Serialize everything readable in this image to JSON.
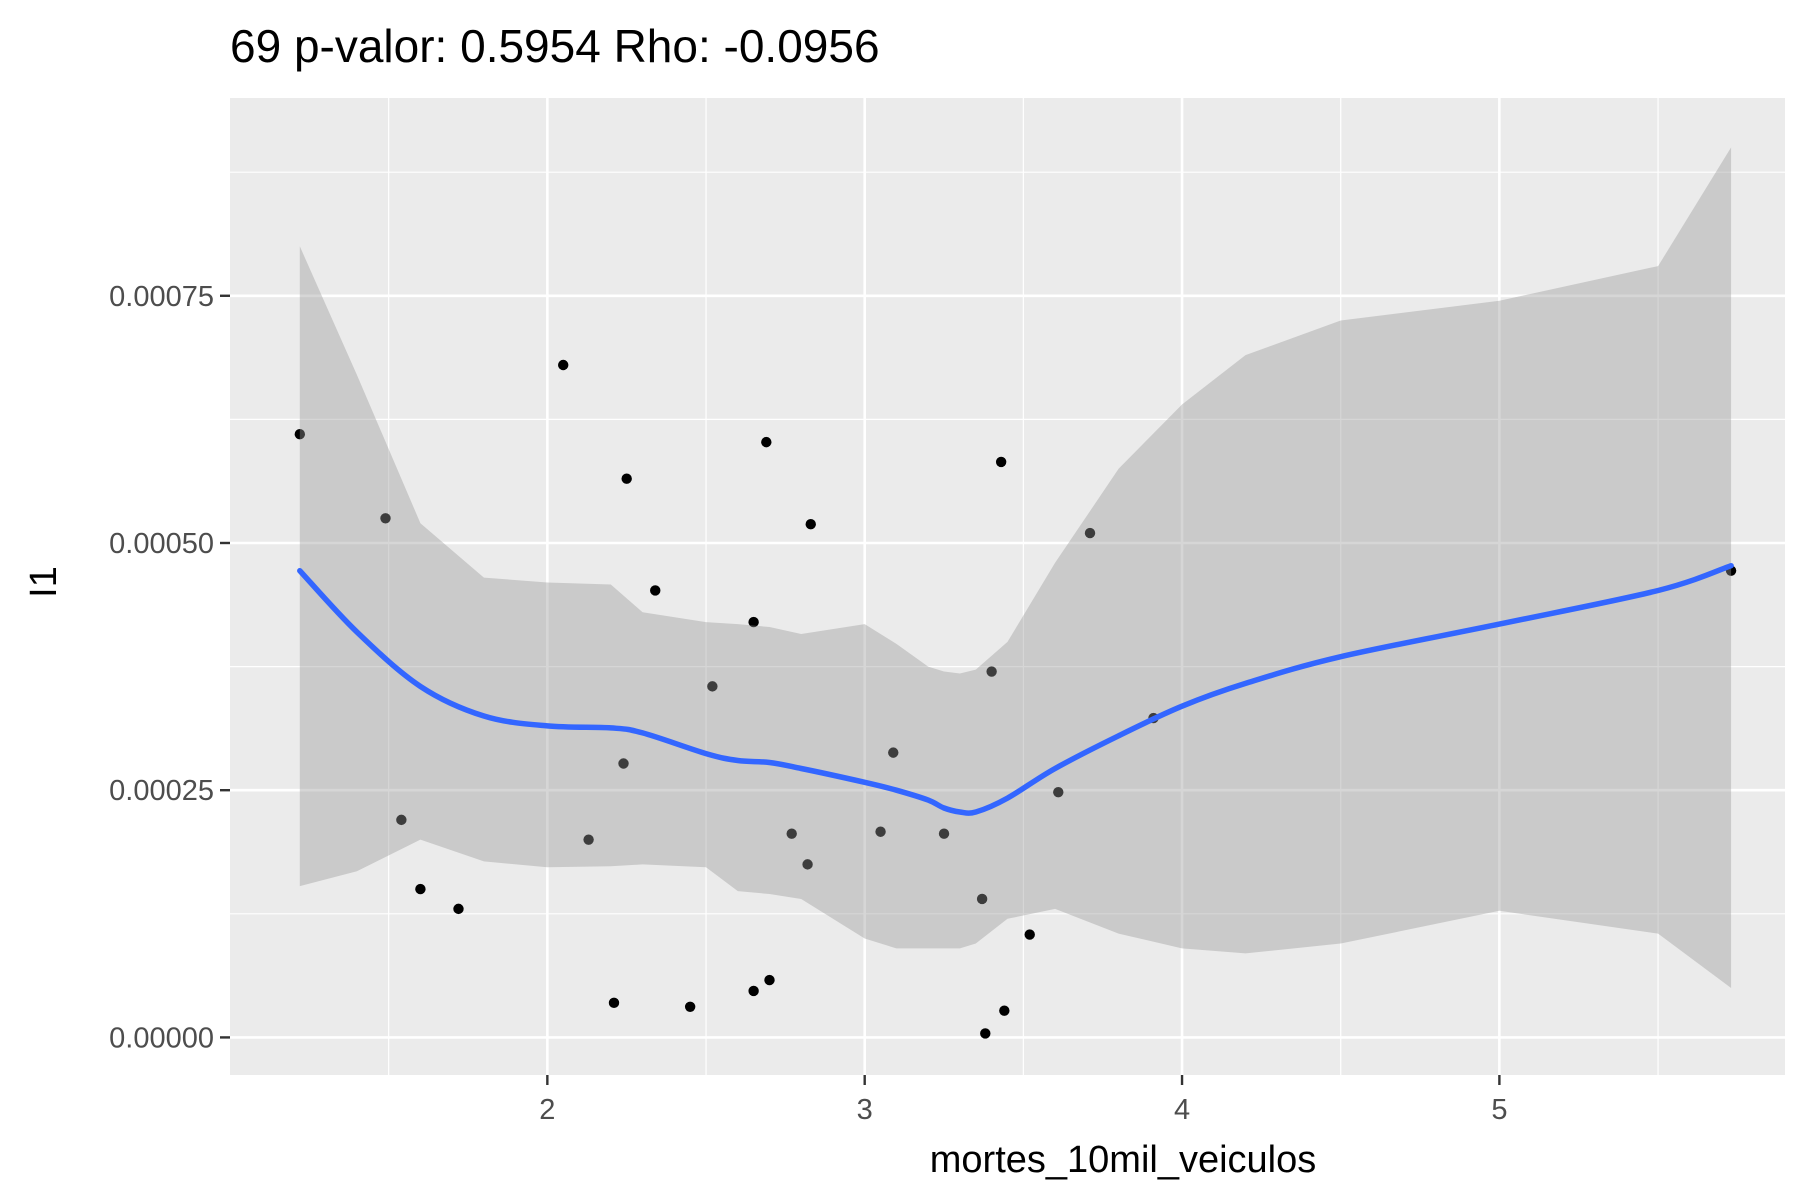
{
  "chart_data": {
    "type": "scatter",
    "title": "69 p-valor: 0.5954 Rho: -0.0956",
    "xlabel": "mortes_10mil_veiculos",
    "ylabel": "I1",
    "xlim": [
      1.0,
      5.9
    ],
    "ylim": [
      -3.8e-05,
      0.00095
    ],
    "x_ticks": [
      2,
      3,
      4,
      5
    ],
    "x_tick_labels": [
      "2",
      "3",
      "4",
      "5"
    ],
    "y_ticks": [
      0.0,
      0.00025,
      0.0005,
      0.00075
    ],
    "y_tick_labels": [
      "0.00000",
      "0.00025",
      "0.00050",
      "0.00075"
    ],
    "grid": true,
    "legend": "none",
    "colors": {
      "panel_background": "#ebebeb",
      "grid": "#ffffff",
      "points": "#000000",
      "smooth_line": "#3366ff",
      "confidence_band": "#999999"
    },
    "points": [
      {
        "x": 1.22,
        "y": 0.00061
      },
      {
        "x": 1.49,
        "y": 0.000525
      },
      {
        "x": 1.54,
        "y": 0.00022
      },
      {
        "x": 1.6,
        "y": 0.00015
      },
      {
        "x": 1.72,
        "y": 0.00013
      },
      {
        "x": 2.05,
        "y": 0.00068
      },
      {
        "x": 2.13,
        "y": 0.0002
      },
      {
        "x": 2.21,
        "y": 3.5e-05
      },
      {
        "x": 2.24,
        "y": 0.000277
      },
      {
        "x": 2.25,
        "y": 0.000565
      },
      {
        "x": 2.34,
        "y": 0.000452
      },
      {
        "x": 2.45,
        "y": 3.1e-05
      },
      {
        "x": 2.52,
        "y": 0.000355
      },
      {
        "x": 2.65,
        "y": 0.00042
      },
      {
        "x": 2.65,
        "y": 4.7e-05
      },
      {
        "x": 2.69,
        "y": 0.000602
      },
      {
        "x": 2.7,
        "y": 5.8e-05
      },
      {
        "x": 2.77,
        "y": 0.000206
      },
      {
        "x": 2.82,
        "y": 0.000175
      },
      {
        "x": 2.83,
        "y": 0.000519
      },
      {
        "x": 3.05,
        "y": 0.000208
      },
      {
        "x": 3.09,
        "y": 0.000288
      },
      {
        "x": 3.25,
        "y": 0.000206
      },
      {
        "x": 3.37,
        "y": 0.00014
      },
      {
        "x": 3.38,
        "y": 4e-06
      },
      {
        "x": 3.4,
        "y": 0.00037
      },
      {
        "x": 3.43,
        "y": 0.000582
      },
      {
        "x": 3.44,
        "y": 2.7e-05
      },
      {
        "x": 3.52,
        "y": 0.000104
      },
      {
        "x": 3.61,
        "y": 0.000248
      },
      {
        "x": 3.71,
        "y": 0.00051
      },
      {
        "x": 3.91,
        "y": 0.000323
      },
      {
        "x": 5.73,
        "y": 0.000472
      }
    ],
    "smooth": {
      "x": [
        1.22,
        1.4,
        1.6,
        1.8,
        2.0,
        2.2,
        2.3,
        2.5,
        2.6,
        2.7,
        2.8,
        3.0,
        3.1,
        3.2,
        3.25,
        3.3,
        3.35,
        3.45,
        3.6,
        3.8,
        4.0,
        4.2,
        4.5,
        5.0,
        5.5,
        5.73
      ],
      "y": [
        0.000472,
        0.00041,
        0.000355,
        0.000325,
        0.000315,
        0.000313,
        0.000308,
        0.000287,
        0.00028,
        0.000278,
        0.000272,
        0.000258,
        0.00025,
        0.00024,
        0.000232,
        0.000228,
        0.000228,
        0.000242,
        0.000272,
        0.000305,
        0.000335,
        0.000358,
        0.000385,
        0.000418,
        0.000452,
        0.000477
      ],
      "upper": [
        0.0008,
        0.00067,
        0.00052,
        0.000465,
        0.00046,
        0.000458,
        0.00043,
        0.00042,
        0.000418,
        0.000415,
        0.000408,
        0.000418,
        0.000398,
        0.000375,
        0.00037,
        0.000368,
        0.000372,
        0.0004,
        0.00048,
        0.000575,
        0.00064,
        0.00069,
        0.000725,
        0.000745,
        0.00078,
        0.0009
      ],
      "lower": [
        0.000153,
        0.000168,
        0.0002,
        0.000178,
        0.000172,
        0.000173,
        0.000175,
        0.000172,
        0.000148,
        0.000145,
        0.00014,
        0.0001,
        9e-05,
        9e-05,
        9e-05,
        9e-05,
        9.5e-05,
        0.00012,
        0.00013,
        0.000105,
        9e-05,
        8.5e-05,
        9.5e-05,
        0.000128,
        0.000105,
        5e-05
      ]
    }
  }
}
